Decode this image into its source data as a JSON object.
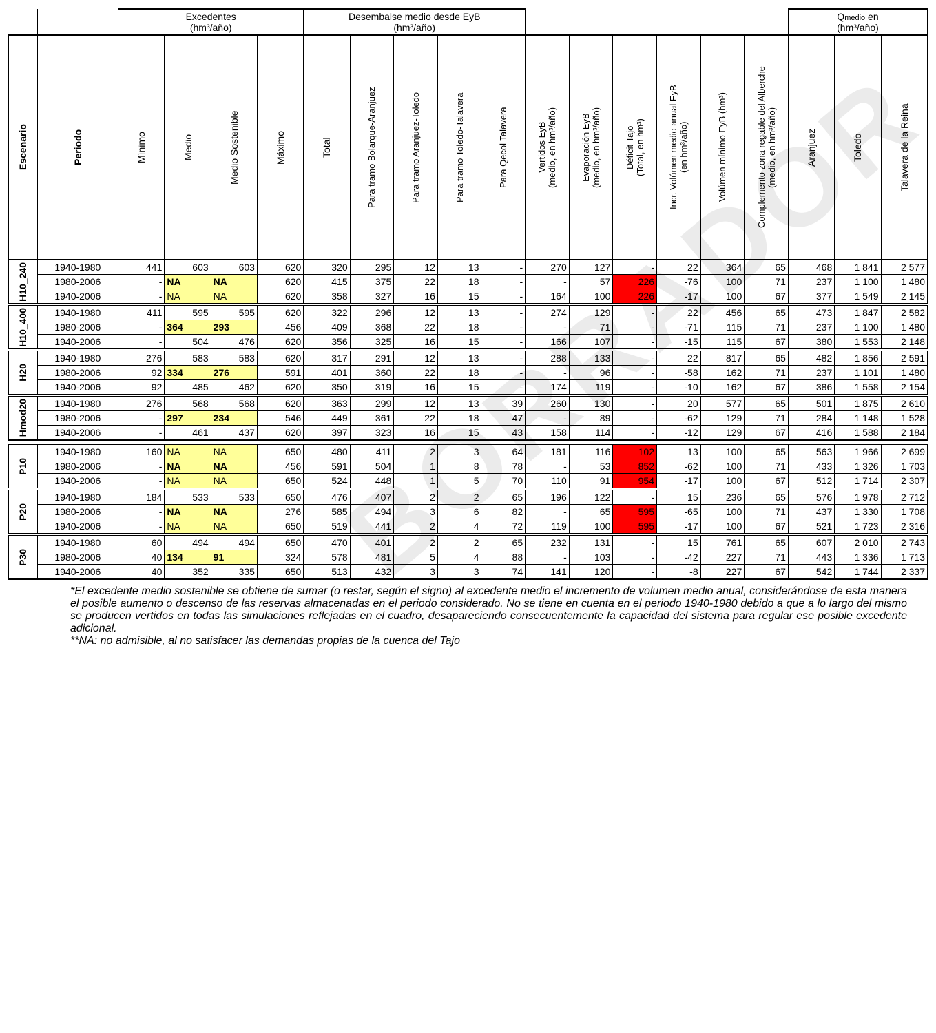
{
  "watermark_text": "BORRADOR",
  "group_headers": {
    "excedentes": "Excedentes\n(hm³/año)",
    "desembalse": "Desembalse medio desde EyB\n(hm³/año)",
    "qmedio_prefix": "Q",
    "qmedio_suffix": " en\n(hm³/año)"
  },
  "col_headers": {
    "escenario": "Escenario",
    "periodo": "Periodo",
    "minimo": "Mínimo",
    "medio": "Medio",
    "medio_sost": "Medio Sostenible",
    "maximo": "Máximo",
    "total": "Total",
    "bolarque": "Para tramo Bolarque-Aranjuez",
    "aranjuez_toledo": "Para tramo Aranjuez-Toledo",
    "toledo_talavera": "Para tramo Toledo-Talavera",
    "qecol": "Para Qecol Talavera",
    "vertidos": "Vertidos EyB\n(medio, en hm³/año)",
    "evap": "Evaporación EyB\n(medio, en hm³/año)",
    "deficit": "Déficit Tajo\n(Total, en hm³)",
    "incr_vol": "Incr. Volúmen medio anual EyB\n(en hm³/año)",
    "vol_min": "Volúmen mínimo EyB (hm³)",
    "compl": "Complemento zona regable del Alberche\n(medio, en hm³/año)",
    "aranjuez": "Aranjuez",
    "toledo": "Toledo",
    "talavera": "Talavera de la Reina"
  },
  "scenarios": [
    {
      "name": "H10_240",
      "rows": [
        {
          "period": "1940-1980",
          "c": [
            "441",
            "603",
            "603",
            "620",
            "320",
            "295",
            "12",
            "13",
            "-",
            "270",
            "127",
            "-",
            "22",
            "364",
            "65",
            "468",
            "1 841",
            "2 577"
          ],
          "hl": {}
        },
        {
          "period": "1980-2006",
          "c": [
            "-",
            "NA",
            "NA",
            "620",
            "415",
            "375",
            "22",
            "18",
            "-",
            "-",
            "57",
            "226",
            "-76",
            "100",
            "71",
            "237",
            "1 100",
            "1 480"
          ],
          "hl": {
            "1": "y",
            "2": "y",
            "11": "r"
          }
        },
        {
          "period": "1940-2006",
          "c": [
            "-",
            "NA",
            "NA",
            "620",
            "358",
            "327",
            "16",
            "15",
            "-",
            "164",
            "100",
            "226",
            "-17",
            "100",
            "67",
            "377",
            "1 549",
            "2 145"
          ],
          "hl": {
            "1": "yl",
            "2": "yl",
            "11": "r"
          }
        }
      ]
    },
    {
      "name": "H10_400",
      "rows": [
        {
          "period": "1940-1980",
          "c": [
            "411",
            "595",
            "595",
            "620",
            "322",
            "296",
            "12",
            "13",
            "-",
            "274",
            "129",
            "-",
            "22",
            "456",
            "65",
            "473",
            "1 847",
            "2 582"
          ],
          "hl": {}
        },
        {
          "period": "1980-2006",
          "c": [
            "-",
            "364",
            "293",
            "456",
            "409",
            "368",
            "22",
            "18",
            "-",
            "-",
            "71",
            "-",
            "-71",
            "115",
            "71",
            "237",
            "1 100",
            "1 480"
          ],
          "hl": {
            "1": "y",
            "2": "y"
          }
        },
        {
          "period": "1940-2006",
          "c": [
            "-",
            "504",
            "476",
            "620",
            "356",
            "325",
            "16",
            "15",
            "-",
            "166",
            "107",
            "-",
            "-15",
            "115",
            "67",
            "380",
            "1 553",
            "2 148"
          ],
          "hl": {}
        }
      ]
    },
    {
      "name": "H20",
      "rows": [
        {
          "period": "1940-1980",
          "c": [
            "276",
            "583",
            "583",
            "620",
            "317",
            "291",
            "12",
            "13",
            "-",
            "288",
            "133",
            "-",
            "22",
            "817",
            "65",
            "482",
            "1 856",
            "2 591"
          ],
          "hl": {}
        },
        {
          "period": "1980-2006",
          "c": [
            "92",
            "334",
            "276",
            "591",
            "401",
            "360",
            "22",
            "18",
            "-",
            "-",
            "96",
            "-",
            "-58",
            "162",
            "71",
            "237",
            "1 101",
            "1 480"
          ],
          "hl": {
            "1": "y",
            "2": "y"
          }
        },
        {
          "period": "1940-2006",
          "c": [
            "92",
            "485",
            "462",
            "620",
            "350",
            "319",
            "16",
            "15",
            "-",
            "174",
            "119",
            "-",
            "-10",
            "162",
            "67",
            "386",
            "1 558",
            "2 154"
          ],
          "hl": {}
        }
      ]
    },
    {
      "name": "Hmod20",
      "rows": [
        {
          "period": "1940-1980",
          "c": [
            "276",
            "568",
            "568",
            "620",
            "363",
            "299",
            "12",
            "13",
            "39",
            "260",
            "130",
            "-",
            "20",
            "577",
            "65",
            "501",
            "1 875",
            "2 610"
          ],
          "hl": {}
        },
        {
          "period": "1980-2006",
          "c": [
            "-",
            "297",
            "234",
            "546",
            "449",
            "361",
            "22",
            "18",
            "47",
            "-",
            "89",
            "-",
            "-62",
            "129",
            "71",
            "284",
            "1 148",
            "1 528"
          ],
          "hl": {
            "1": "y",
            "2": "y"
          }
        },
        {
          "period": "1940-2006",
          "c": [
            "-",
            "461",
            "437",
            "620",
            "397",
            "323",
            "16",
            "15",
            "43",
            "158",
            "114",
            "-",
            "-12",
            "129",
            "67",
            "416",
            "1 588",
            "2 184"
          ],
          "hl": {}
        }
      ]
    }
  ],
  "scenarios2": [
    {
      "name": "P10",
      "rows": [
        {
          "period": "1940-1980",
          "c": [
            "160",
            "NA",
            "NA",
            "650",
            "480",
            "411",
            "2",
            "3",
            "64",
            "181",
            "116",
            "102",
            "13",
            "100",
            "65",
            "563",
            "1 966",
            "2 699"
          ],
          "hl": {
            "1": "yl",
            "2": "yl",
            "11": "r"
          }
        },
        {
          "period": "1980-2006",
          "c": [
            "-",
            "NA",
            "NA",
            "456",
            "591",
            "504",
            "1",
            "8",
            "78",
            "-",
            "53",
            "852",
            "-62",
            "100",
            "71",
            "433",
            "1 326",
            "1 703"
          ],
          "hl": {
            "1": "y",
            "2": "y",
            "11": "r"
          }
        },
        {
          "period": "1940-2006",
          "c": [
            "-",
            "NA",
            "NA",
            "650",
            "524",
            "448",
            "1",
            "5",
            "70",
            "110",
            "91",
            "954",
            "-17",
            "100",
            "67",
            "512",
            "1 714",
            "2 307"
          ],
          "hl": {
            "1": "yl",
            "2": "yl",
            "11": "r"
          }
        }
      ]
    },
    {
      "name": "P20",
      "rows": [
        {
          "period": "1940-1980",
          "c": [
            "184",
            "533",
            "533",
            "650",
            "476",
            "407",
            "2",
            "2",
            "65",
            "196",
            "122",
            "-",
            "15",
            "236",
            "65",
            "576",
            "1 978",
            "2 712"
          ],
          "hl": {}
        },
        {
          "period": "1980-2006",
          "c": [
            "-",
            "NA",
            "NA",
            "276",
            "585",
            "494",
            "3",
            "6",
            "82",
            "-",
            "65",
            "595",
            "-65",
            "100",
            "71",
            "437",
            "1 330",
            "1 708"
          ],
          "hl": {
            "1": "y",
            "2": "y",
            "11": "r"
          }
        },
        {
          "period": "1940-2006",
          "c": [
            "-",
            "NA",
            "NA",
            "650",
            "519",
            "441",
            "2",
            "4",
            "72",
            "119",
            "100",
            "595",
            "-17",
            "100",
            "67",
            "521",
            "1 723",
            "2 316"
          ],
          "hl": {
            "1": "yl",
            "2": "yl",
            "11": "r"
          }
        }
      ]
    },
    {
      "name": "P30",
      "rows": [
        {
          "period": "1940-1980",
          "c": [
            "60",
            "494",
            "494",
            "650",
            "470",
            "401",
            "2",
            "2",
            "65",
            "232",
            "131",
            "-",
            "15",
            "761",
            "65",
            "607",
            "2 010",
            "2 743"
          ],
          "hl": {}
        },
        {
          "period": "1980-2006",
          "c": [
            "40",
            "134",
            "91",
            "324",
            "578",
            "481",
            "5",
            "4",
            "88",
            "-",
            "103",
            "-",
            "-42",
            "227",
            "71",
            "443",
            "1 336",
            "1 713"
          ],
          "hl": {
            "1": "y",
            "2": "y"
          }
        },
        {
          "period": "1940-2006",
          "c": [
            "40",
            "352",
            "335",
            "650",
            "513",
            "432",
            "3",
            "3",
            "74",
            "141",
            "120",
            "-",
            "-8",
            "227",
            "67",
            "542",
            "1 744",
            "2 337"
          ],
          "hl": {}
        }
      ]
    }
  ],
  "footnote1": "*El excedente medio sostenible se obtiene de sumar (o restar, según el signo) al excedente medio el incremento de volumen medio anual, considerándose de esta manera el posible aumento o descenso de las reservas almacenadas en el periodo considerado. No se tiene en cuenta en el periodo 1940-1980 debido a que a lo largo del mismo se producen vertidos en todas las simulaciones reflejadas en el cuadro, desapareciendo consecuentemente la capacidad del sistema para regular ese posible excedente adicional.",
  "footnote2": "**NA: no admisible, al no satisfacer las demandas propias de la cuenca del Tajo",
  "colors": {
    "highlight_yellow": "#ffff99",
    "highlight_red": "#ff0000",
    "border": "#000000",
    "text": "#000000",
    "background": "#ffffff"
  }
}
